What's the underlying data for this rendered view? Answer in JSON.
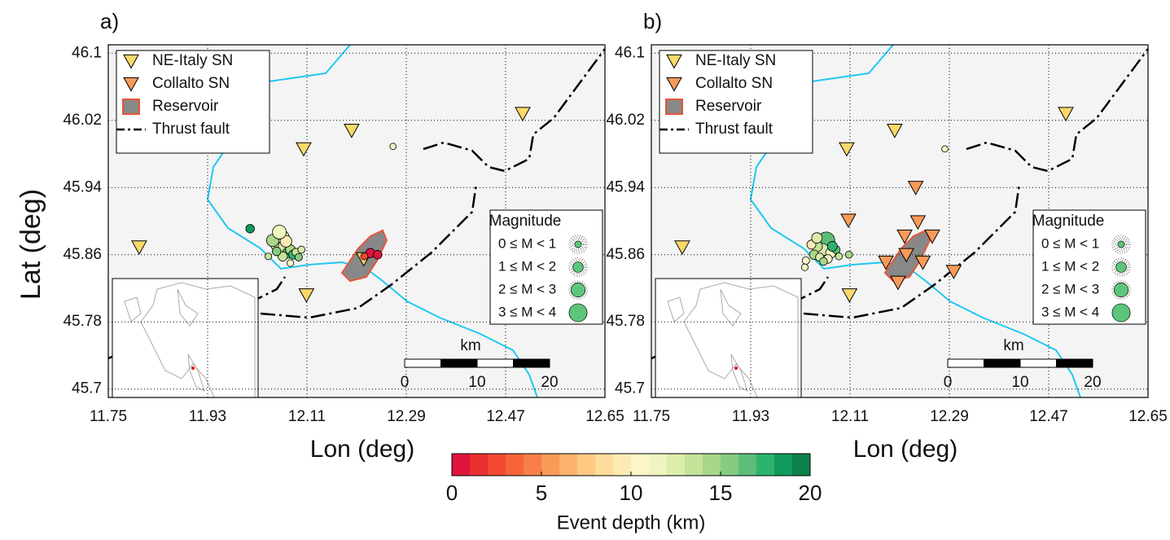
{
  "panels": [
    {
      "label": "a)",
      "xlabel": "Lon (deg)",
      "ylabel": "Lat (deg)",
      "xlim": [
        11.75,
        12.65
      ],
      "ylim": [
        45.69,
        46.11
      ],
      "xticks": [
        11.75,
        11.93,
        12.11,
        12.29,
        12.47,
        12.65
      ],
      "yticks": [
        45.7,
        45.78,
        45.86,
        45.94,
        46.02,
        46.1
      ],
      "legend": [
        {
          "name": "NE-Italy SN",
          "color": "#fbd96a",
          "points": [
            [
              11.806,
              45.869
            ],
            [
              12.104,
              45.986
            ],
            [
              12.191,
              46.008
            ],
            [
              12.501,
              46.028
            ],
            [
              12.109,
              45.812
            ],
            [
              12.213,
              45.855
            ]
          ]
        },
        {
          "name": "Collalto SN",
          "color": "#f79a5a",
          "points": []
        },
        {
          "name": "Reservoir",
          "color": "#888888",
          "points": []
        },
        {
          "name": "Thrust fault",
          "color": "#000000",
          "points": []
        }
      ],
      "magnitude_legend": {
        "title": "Magnitude",
        "items": [
          "0 ≤ M < 1",
          "1 ≤ M < 2",
          "2 ≤ M < 3",
          "3 ≤ M < 4"
        ]
      },
      "scale_bar": {
        "unit": "km",
        "labels": [
          "0",
          "10",
          "20"
        ]
      },
      "events": [
        [
          12.063,
          45.88,
          11,
          3.1
        ],
        [
          12.057,
          45.873,
          10,
          2.6
        ],
        [
          12.07,
          45.87,
          12,
          2.2
        ],
        [
          12.048,
          45.877,
          14,
          2.0
        ],
        [
          12.075,
          45.862,
          16,
          1.5
        ],
        [
          12.08,
          45.866,
          14,
          1.3
        ],
        [
          12.066,
          45.858,
          13,
          1.2
        ],
        [
          12.085,
          45.86,
          17,
          1.1
        ],
        [
          12.055,
          45.864,
          15,
          1.0
        ],
        [
          12.09,
          45.863,
          13,
          0.8
        ],
        [
          12.1,
          45.866,
          12,
          0.6
        ],
        [
          12.04,
          45.858,
          13,
          0.5
        ],
        [
          12.072,
          45.876,
          9,
          1.8
        ],
        [
          12.06,
          45.887,
          11,
          2.4
        ],
        [
          12.08,
          45.85,
          10,
          0.5
        ],
        [
          12.095,
          45.857,
          15,
          0.7
        ],
        [
          12.007,
          45.891,
          18,
          1.0
        ],
        [
          12.266,
          45.989,
          10,
          0.4
        ],
        [
          12.225,
          45.862,
          0.5,
          1.2
        ],
        [
          12.238,
          45.86,
          0.8,
          1.0
        ],
        [
          12.214,
          45.858,
          2,
          0.6
        ]
      ]
    },
    {
      "label": "b)",
      "xlabel": "Lon (deg)",
      "xlim": [
        11.75,
        12.65
      ],
      "ylim": [
        45.69,
        46.11
      ],
      "xticks": [
        11.75,
        11.93,
        12.11,
        12.29,
        12.47,
        12.65
      ],
      "yticks": [
        45.7,
        45.78,
        45.86,
        45.94,
        46.02,
        46.1
      ],
      "legend": [
        {
          "name": "NE-Italy SN",
          "color": "#fbd96a",
          "points": [
            [
              11.806,
              45.869
            ],
            [
              12.104,
              45.986
            ],
            [
              12.191,
              46.008
            ],
            [
              12.501,
              46.028
            ],
            [
              12.109,
              45.812
            ]
          ]
        },
        {
          "name": "Collalto SN",
          "color": "#f79a5a",
          "points": [
            [
              12.107,
              45.901
            ],
            [
              12.229,
              45.94
            ],
            [
              12.233,
              45.899
            ],
            [
              12.209,
              45.882
            ],
            [
              12.259,
              45.882
            ],
            [
              12.175,
              45.851
            ],
            [
              12.212,
              45.86
            ],
            [
              12.242,
              45.851
            ],
            [
              12.197,
              45.827
            ],
            [
              12.298,
              45.84
            ]
          ]
        },
        {
          "name": "Reservoir",
          "color": "#888888",
          "points": []
        },
        {
          "name": "Thrust fault",
          "color": "#000000",
          "points": []
        }
      ],
      "magnitude_legend": {
        "title": "Magnitude",
        "items": [
          "0 ≤ M < 1",
          "1 ≤ M < 2",
          "2 ≤ M < 3",
          "3 ≤ M < 4"
        ]
      },
      "scale_bar": {
        "unit": "km",
        "labels": [
          "0",
          "10",
          "20"
        ]
      },
      "events": [
        [
          12.067,
          45.877,
          16,
          3.2
        ],
        [
          12.06,
          45.866,
          12,
          2.0
        ],
        [
          12.05,
          45.87,
          13,
          1.6
        ],
        [
          12.075,
          45.862,
          11,
          1.4
        ],
        [
          12.045,
          45.86,
          14,
          1.2
        ],
        [
          12.07,
          45.855,
          10,
          1.0
        ],
        [
          12.055,
          45.857,
          12,
          0.9
        ],
        [
          12.085,
          45.866,
          16,
          0.8
        ],
        [
          12.04,
          45.872,
          9,
          1.1
        ],
        [
          12.03,
          45.853,
          10,
          0.7
        ],
        [
          12.09,
          45.858,
          13,
          0.6
        ],
        [
          12.062,
          45.852,
          14,
          0.8
        ],
        [
          12.028,
          45.845,
          10,
          0.5
        ],
        [
          12.078,
          45.87,
          17,
          1.3
        ],
        [
          12.108,
          45.86,
          14,
          0.6
        ],
        [
          12.05,
          45.88,
          12,
          1.5
        ],
        [
          12.282,
          45.986,
          10,
          0.4
        ]
      ]
    }
  ],
  "colorbar": {
    "colors": [
      "#e0143c",
      "#ea3030",
      "#f24a32",
      "#f6653a",
      "#f88048",
      "#fa9a58",
      "#fcb46c",
      "#fdc983",
      "#fddc9c",
      "#fcebb4",
      "#fbf6c8",
      "#eff4c0",
      "#dcecab",
      "#c5e298",
      "#a9d688",
      "#86cb7e",
      "#5dbd78",
      "#2db36e",
      "#109a5c",
      "#0c8048"
    ],
    "lim": [
      0,
      20
    ],
    "ticks": [
      0,
      5,
      10,
      15,
      20
    ],
    "label": "Event depth (km)"
  }
}
